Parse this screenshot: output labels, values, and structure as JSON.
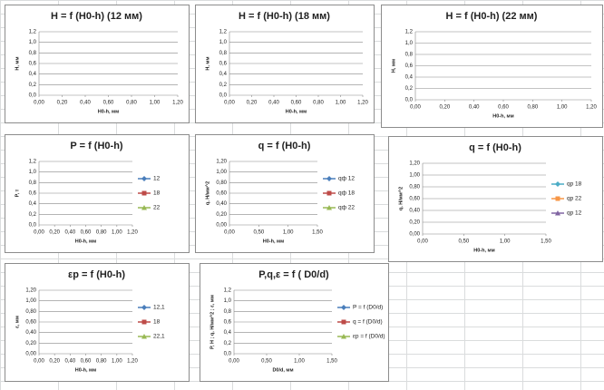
{
  "chart_data": [
    {
      "type": "line",
      "title": "H = f (H0-h) (12 мм)",
      "x_label": "H0-h, мм",
      "y_label": "H, мм",
      "grid": true,
      "xlim": [
        0,
        1.2
      ],
      "ylim": [
        0,
        1.2
      ],
      "xticks": [
        {
          "value": 0,
          "label": "0,00"
        },
        {
          "value": 0.2,
          "label": "0,20"
        },
        {
          "value": 0.4,
          "label": "0,40"
        },
        {
          "value": 0.6,
          "label": "0,60"
        },
        {
          "value": 0.8,
          "label": "0,80"
        },
        {
          "value": 1,
          "label": "1,00"
        },
        {
          "value": 1.2,
          "label": "1,20"
        }
      ],
      "yticks": [
        {
          "value": 0,
          "label": "0,0"
        },
        {
          "value": 0.2,
          "label": "0,2"
        },
        {
          "value": 0.4,
          "label": "0,4"
        },
        {
          "value": 0.6,
          "label": "0,6"
        },
        {
          "value": 0.8,
          "label": "0,8"
        },
        {
          "value": 1,
          "label": "1,0"
        },
        {
          "value": 1.2,
          "label": "1,2"
        }
      ],
      "series": []
    },
    {
      "type": "line",
      "title": "H = f (H0-h) (18 мм)",
      "x_label": "H0-h, мм",
      "y_label": "H, мм",
      "grid": true,
      "xlim": [
        0,
        1.2
      ],
      "ylim": [
        0,
        1.2
      ],
      "xticks": [
        {
          "value": 0,
          "label": "0,00"
        },
        {
          "value": 0.2,
          "label": "0,20"
        },
        {
          "value": 0.4,
          "label": "0,40"
        },
        {
          "value": 0.6,
          "label": "0,60"
        },
        {
          "value": 0.8,
          "label": "0,80"
        },
        {
          "value": 1,
          "label": "1,00"
        },
        {
          "value": 1.2,
          "label": "1,20"
        }
      ],
      "yticks": [
        {
          "value": 0,
          "label": "0,0"
        },
        {
          "value": 0.2,
          "label": "0,2"
        },
        {
          "value": 0.4,
          "label": "0,4"
        },
        {
          "value": 0.6,
          "label": "0,6"
        },
        {
          "value": 0.8,
          "label": "0,8"
        },
        {
          "value": 1,
          "label": "1,0"
        },
        {
          "value": 1.2,
          "label": "1,2"
        }
      ],
      "series": []
    },
    {
      "type": "line",
      "title": "H = f (H0-h) (22 мм)",
      "x_label": "H0-h, мм",
      "y_label": "H, мм",
      "grid": true,
      "xlim": [
        0,
        1.2
      ],
      "ylim": [
        0,
        1.2
      ],
      "xticks": [
        {
          "value": 0,
          "label": "0,00"
        },
        {
          "value": 0.2,
          "label": "0,20"
        },
        {
          "value": 0.4,
          "label": "0,40"
        },
        {
          "value": 0.6,
          "label": "0,60"
        },
        {
          "value": 0.8,
          "label": "0,80"
        },
        {
          "value": 1,
          "label": "1,00"
        },
        {
          "value": 1.2,
          "label": "1,20"
        }
      ],
      "yticks": [
        {
          "value": 0,
          "label": "0,0"
        },
        {
          "value": 0.2,
          "label": "0,2"
        },
        {
          "value": 0.4,
          "label": "0,4"
        },
        {
          "value": 0.6,
          "label": "0,6"
        },
        {
          "value": 0.8,
          "label": "0,8"
        },
        {
          "value": 1,
          "label": "1,0"
        },
        {
          "value": 1.2,
          "label": "1,2"
        }
      ],
      "series": []
    },
    {
      "type": "line",
      "title": "P = f (H0-h)",
      "x_label": "H0-h, мм",
      "y_label": "P, т",
      "grid": true,
      "xlim": [
        0,
        1.2
      ],
      "ylim": [
        0,
        1.2
      ],
      "xticks": [
        {
          "value": 0,
          "label": "0,00"
        },
        {
          "value": 0.2,
          "label": "0,20"
        },
        {
          "value": 0.4,
          "label": "0,40"
        },
        {
          "value": 0.6,
          "label": "0,60"
        },
        {
          "value": 0.8,
          "label": "0,80"
        },
        {
          "value": 1,
          "label": "1,00"
        },
        {
          "value": 1.2,
          "label": "1,20"
        }
      ],
      "yticks": [
        {
          "value": 0,
          "label": "0,0"
        },
        {
          "value": 0.2,
          "label": "0,2"
        },
        {
          "value": 0.4,
          "label": "0,4"
        },
        {
          "value": 0.6,
          "label": "0,6"
        },
        {
          "value": 0.8,
          "label": "0,8"
        },
        {
          "value": 1,
          "label": "1,0"
        },
        {
          "value": 1.2,
          "label": "1,2"
        }
      ],
      "series": [
        {
          "name": "12",
          "color": "#4a7ebb",
          "values": []
        },
        {
          "name": "18",
          "color": "#be4b48",
          "values": []
        },
        {
          "name": "22",
          "color": "#98b954",
          "values": []
        }
      ]
    },
    {
      "type": "line",
      "title": "q = f (H0-h)",
      "x_label": "H0-h, мм",
      "y_label": "q, H/мм^2",
      "grid": true,
      "xlim": [
        0,
        1.5
      ],
      "ylim": [
        0,
        1.2
      ],
      "xticks": [
        {
          "value": 0,
          "label": "0,00"
        },
        {
          "value": 0.5,
          "label": "0,50"
        },
        {
          "value": 1,
          "label": "1,00"
        },
        {
          "value": 1.5,
          "label": "1,50"
        }
      ],
      "yticks": [
        {
          "value": 0,
          "label": "0,00"
        },
        {
          "value": 0.2,
          "label": "0,20"
        },
        {
          "value": 0.4,
          "label": "0,40"
        },
        {
          "value": 0.6,
          "label": "0,60"
        },
        {
          "value": 0.8,
          "label": "0,80"
        },
        {
          "value": 1,
          "label": "1,00"
        },
        {
          "value": 1.2,
          "label": "1,20"
        }
      ],
      "series": [
        {
          "name": "qф 12",
          "color": "#4a7ebb",
          "values": []
        },
        {
          "name": "qф 18",
          "color": "#be4b48",
          "values": []
        },
        {
          "name": "qф 22",
          "color": "#98b954",
          "values": []
        }
      ]
    },
    {
      "type": "line",
      "title": "q = f (H0-h)",
      "x_label": "H0-h, мм",
      "y_label": "q, H/мм^2",
      "grid": true,
      "xlim": [
        0,
        1.5
      ],
      "ylim": [
        0,
        1.2
      ],
      "xticks": [
        {
          "value": 0,
          "label": "0,00"
        },
        {
          "value": 0.5,
          "label": "0,50"
        },
        {
          "value": 1,
          "label": "1,00"
        },
        {
          "value": 1.5,
          "label": "1,50"
        }
      ],
      "yticks": [
        {
          "value": 0,
          "label": "0,00"
        },
        {
          "value": 0.2,
          "label": "0,20"
        },
        {
          "value": 0.4,
          "label": "0,40"
        },
        {
          "value": 0.6,
          "label": "0,60"
        },
        {
          "value": 0.8,
          "label": "0,80"
        },
        {
          "value": 1,
          "label": "1,00"
        },
        {
          "value": 1.2,
          "label": "1,20"
        }
      ],
      "series": [
        {
          "name": "qp 18",
          "color": "#4bacc6",
          "values": []
        },
        {
          "name": "qp 22",
          "color": "#f79646",
          "values": []
        },
        {
          "name": "qp 12",
          "color": "#8064a2",
          "values": []
        }
      ]
    },
    {
      "type": "line",
      "title": "εp = f (H0-h)",
      "x_label": "H0-h, мм",
      "y_label": "ε, мм",
      "grid": true,
      "xlim": [
        0,
        1.2
      ],
      "ylim": [
        0,
        1.2
      ],
      "xticks": [
        {
          "value": 0,
          "label": "0,00"
        },
        {
          "value": 0.2,
          "label": "0,20"
        },
        {
          "value": 0.4,
          "label": "0,40"
        },
        {
          "value": 0.6,
          "label": "0,60"
        },
        {
          "value": 0.8,
          "label": "0,80"
        },
        {
          "value": 1,
          "label": "1,00"
        },
        {
          "value": 1.2,
          "label": "1,20"
        }
      ],
      "yticks": [
        {
          "value": 0,
          "label": "0,00"
        },
        {
          "value": 0.2,
          "label": "0,20"
        },
        {
          "value": 0.4,
          "label": "0,40"
        },
        {
          "value": 0.6,
          "label": "0,60"
        },
        {
          "value": 0.8,
          "label": "0,80"
        },
        {
          "value": 1,
          "label": "1,00"
        },
        {
          "value": 1.2,
          "label": "1,20"
        }
      ],
      "series": [
        {
          "name": "12,1",
          "color": "#4a7ebb",
          "values": []
        },
        {
          "name": "18",
          "color": "#be4b48",
          "values": []
        },
        {
          "name": "22,1",
          "color": "#98b954",
          "values": []
        }
      ]
    },
    {
      "type": "line",
      "title": "P,q,ε = f ( D0/d)",
      "x_label": "D0/d, мм",
      "y_label": "P, H ; q, H/мм^2 ; ε, мм",
      "grid": true,
      "xlim": [
        0,
        1.5
      ],
      "ylim": [
        0,
        1.2
      ],
      "xticks": [
        {
          "value": 0,
          "label": "0,00"
        },
        {
          "value": 0.5,
          "label": "0,50"
        },
        {
          "value": 1,
          "label": "1,00"
        },
        {
          "value": 1.5,
          "label": "1,50"
        }
      ],
      "yticks": [
        {
          "value": 0,
          "label": "0,0"
        },
        {
          "value": 0.2,
          "label": "0,2"
        },
        {
          "value": 0.4,
          "label": "0,4"
        },
        {
          "value": 0.6,
          "label": "0,6"
        },
        {
          "value": 0.8,
          "label": "0,8"
        },
        {
          "value": 1,
          "label": "1,0"
        },
        {
          "value": 1.2,
          "label": "1,2"
        }
      ],
      "series": [
        {
          "name": "P = f (D0/d)",
          "color": "#4a7ebb",
          "values": []
        },
        {
          "name": "q = f (D0/d)",
          "color": "#be4b48",
          "values": []
        },
        {
          "name": "εp = f (D0/d)",
          "color": "#98b954",
          "values": []
        }
      ]
    }
  ]
}
